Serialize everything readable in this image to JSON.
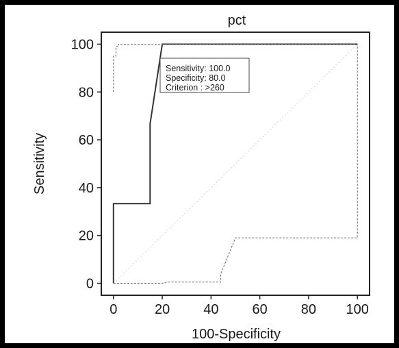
{
  "chart_data": {
    "type": "line",
    "title": "pct",
    "xlabel": "100-Specificity",
    "ylabel": "Sensitivity",
    "xlim": [
      -5,
      105
    ],
    "ylim": [
      -5,
      105
    ],
    "x_ticks": [
      0,
      20,
      40,
      60,
      80,
      100
    ],
    "y_ticks": [
      0,
      20,
      40,
      60,
      80,
      100
    ],
    "grid": false,
    "series": [
      {
        "style": "solid",
        "points": [
          [
            0,
            0
          ],
          [
            0,
            33.3
          ],
          [
            15,
            33.3
          ],
          [
            15,
            66.7
          ],
          [
            20,
            100
          ],
          [
            100,
            100
          ]
        ]
      },
      {
        "style": "dashed",
        "points": [
          [
            0,
            80
          ],
          [
            0,
            95
          ],
          [
            1,
            95
          ],
          [
            1,
            99
          ],
          [
            2,
            99
          ],
          [
            2,
            100
          ],
          [
            100,
            100
          ]
        ]
      },
      {
        "style": "dashed",
        "points": [
          [
            0,
            0
          ],
          [
            20,
            0
          ],
          [
            22,
            0.5
          ],
          [
            44,
            0.5
          ],
          [
            44,
            4
          ],
          [
            50,
            19
          ],
          [
            100,
            19
          ],
          [
            100,
            100
          ]
        ]
      },
      {
        "style": "diagonal",
        "points": [
          [
            0,
            0
          ],
          [
            100,
            100
          ]
        ]
      }
    ],
    "annotation": {
      "lines": [
        "Sensitivity: 100.0",
        "Specificity: 80.0",
        "Criterion : >260"
      ]
    }
  }
}
